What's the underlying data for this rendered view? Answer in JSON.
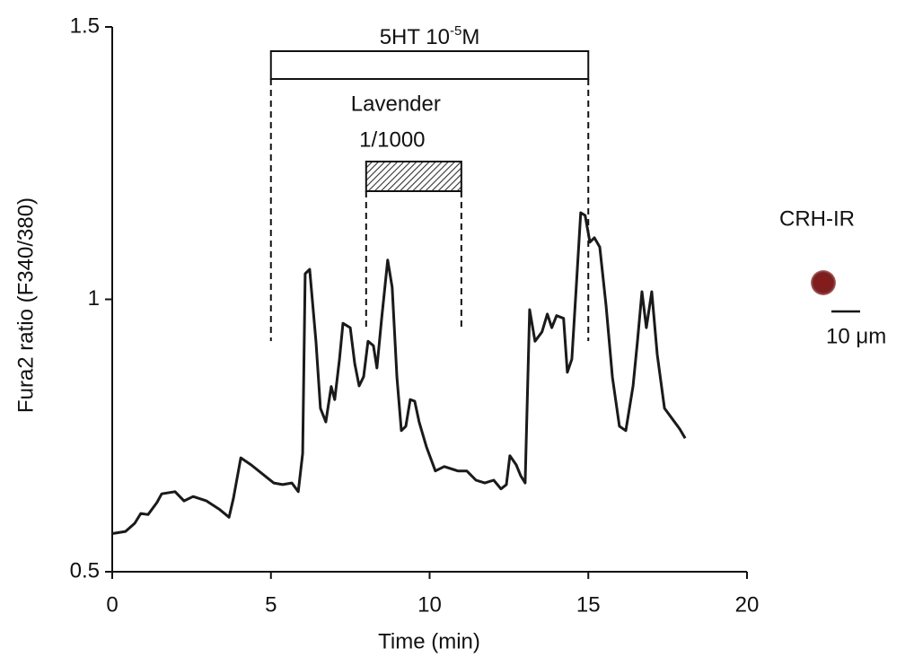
{
  "chart_data": {
    "type": "line",
    "x_label": "Time (min)",
    "y_label": "Fura2 ratio (F340/380)",
    "color": "#1a1a1a",
    "x": [
      0,
      0.42,
      0.71,
      0.9,
      1.13,
      1.41,
      1.56,
      1.98,
      2.26,
      2.55,
      2.97,
      3.39,
      3.68,
      3.82,
      4.05,
      4.38,
      4.81,
      5.09,
      5.37,
      5.66,
      5.86,
      6.0,
      6.08,
      6.22,
      6.42,
      6.56,
      6.73,
      6.9,
      7.01,
      7.16,
      7.27,
      7.5,
      7.64,
      7.78,
      7.92,
      8.06,
      8.23,
      8.34,
      8.49,
      8.68,
      8.82,
      8.97,
      9.11,
      9.25,
      9.39,
      9.53,
      9.67,
      9.9,
      10.18,
      10.46,
      10.89,
      11.17,
      11.46,
      11.74,
      12.02,
      12.25,
      12.42,
      12.53,
      12.73,
      12.87,
      13.01,
      13.15,
      13.32,
      13.54,
      13.71,
      13.85,
      14.0,
      14.22,
      14.34,
      14.48,
      14.62,
      14.76,
      14.9,
      15.05,
      15.19,
      15.36,
      15.56,
      15.76,
      15.98,
      16.18,
      16.41,
      16.55,
      16.69,
      16.83,
      17.0,
      17.17,
      17.4,
      17.68,
      17.88,
      18.05
    ],
    "values": [
      0.57,
      0.574,
      0.589,
      0.607,
      0.605,
      0.627,
      0.643,
      0.647,
      0.63,
      0.638,
      0.63,
      0.614,
      0.6,
      0.635,
      0.709,
      0.696,
      0.676,
      0.663,
      0.66,
      0.663,
      0.647,
      0.717,
      1.047,
      1.055,
      0.923,
      0.8,
      0.775,
      0.84,
      0.816,
      0.89,
      0.956,
      0.948,
      0.882,
      0.841,
      0.858,
      0.923,
      0.915,
      0.874,
      0.965,
      1.072,
      1.022,
      0.857,
      0.759,
      0.767,
      0.816,
      0.813,
      0.775,
      0.729,
      0.685,
      0.693,
      0.685,
      0.685,
      0.668,
      0.663,
      0.668,
      0.652,
      0.66,
      0.713,
      0.696,
      0.676,
      0.663,
      0.981,
      0.923,
      0.94,
      0.973,
      0.948,
      0.97,
      0.965,
      0.866,
      0.89,
      1.022,
      1.159,
      1.154,
      1.105,
      1.113,
      1.096,
      0.989,
      0.857,
      0.767,
      0.759,
      0.841,
      0.923,
      1.014,
      0.948,
      1.014,
      0.899,
      0.8,
      0.778,
      0.762,
      0.745
    ],
    "xlim": [
      0,
      20
    ],
    "xticks": [
      0,
      5,
      10,
      15,
      20
    ],
    "ylim": [
      0.5,
      1.5
    ],
    "yticks": [
      0.5,
      1,
      1.5
    ],
    "grid": false,
    "annotations": [
      {
        "text_parts": [
          "5HT 10",
          "-5",
          "M"
        ],
        "start": 5,
        "end": 15,
        "fill": "none"
      },
      {
        "text_parts": [
          "Lavender",
          "1/1000"
        ],
        "start": 8,
        "end": 11,
        "fill": "hatch"
      }
    ],
    "inset": {
      "label": "CRH-IR",
      "scale_label": "10 μm"
    }
  }
}
